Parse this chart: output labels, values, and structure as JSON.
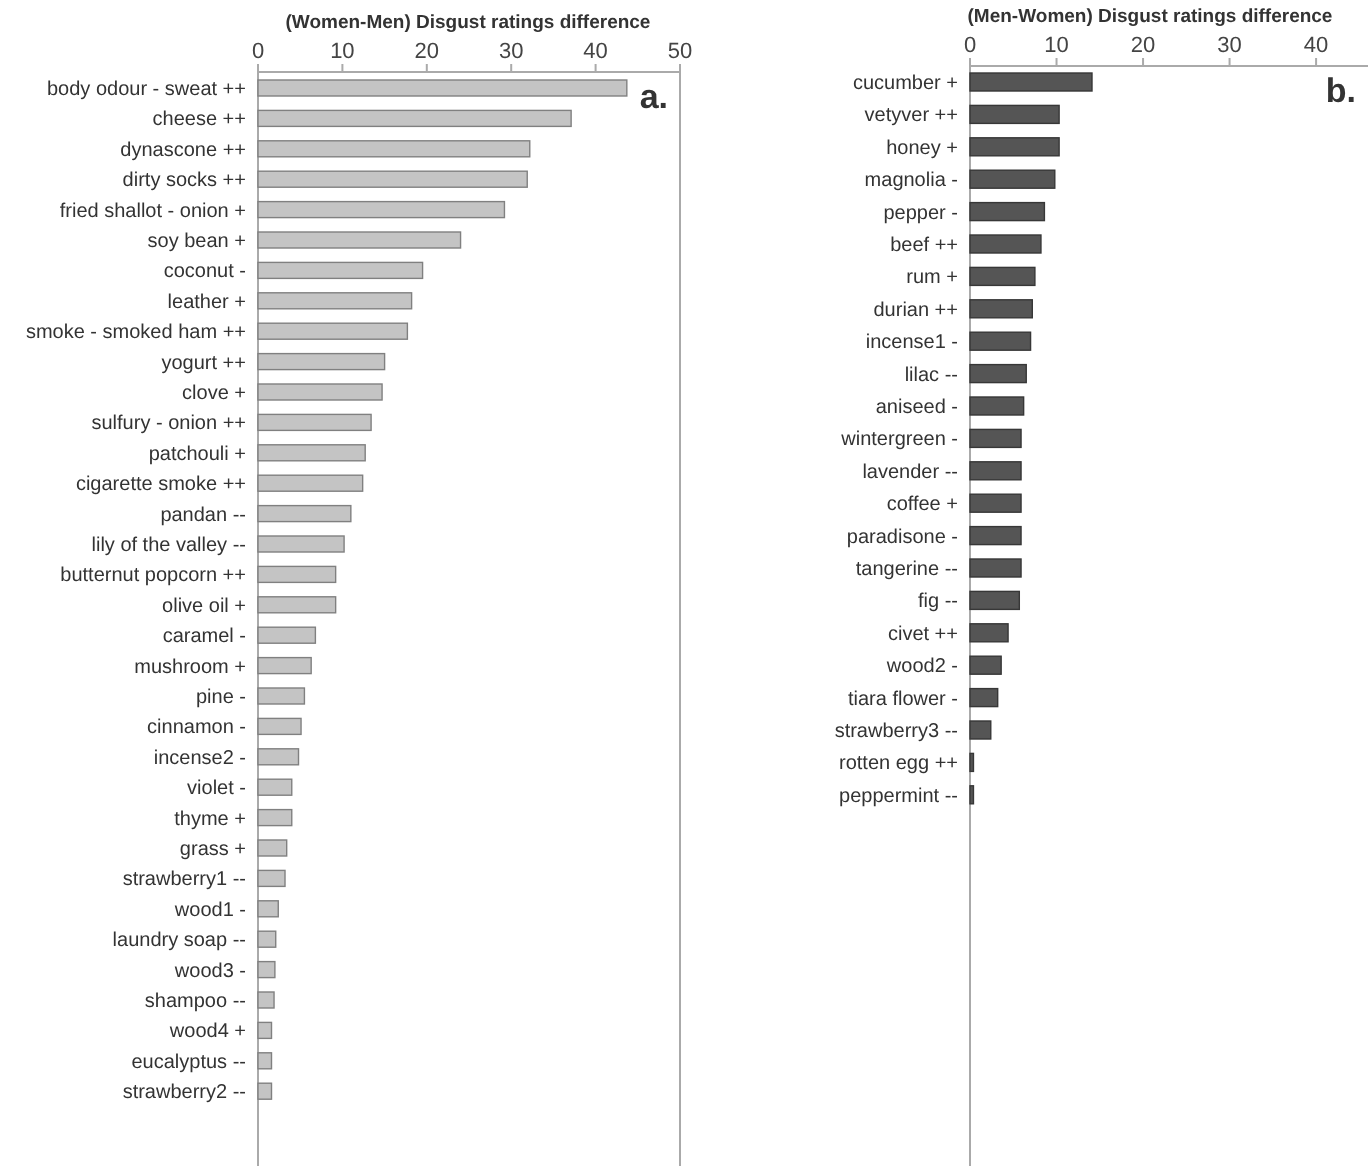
{
  "chart_data": [
    {
      "type": "bar",
      "orientation": "horizontal",
      "xlabel": "(Women-Men) Disgust ratings difference",
      "annotations": [
        "a."
      ],
      "categories": [
        "body odour - sweat ++",
        "cheese ++",
        "dynascone ++",
        "dirty socks ++",
        "fried shallot - onion +",
        "soy bean +",
        "coconut -",
        "leather +",
        "smoke - smoked ham ++",
        "yogurt ++",
        "clove +",
        "sulfury - onion ++",
        "patchouli +",
        "cigarette smoke ++",
        "pandan --",
        "lily of the valley --",
        "butternut popcorn ++",
        "olive oil +",
        "caramel -",
        "mushroom +",
        "pine -",
        "cinnamon -",
        "incense2 -",
        "violet -",
        "thyme +",
        "grass +",
        "strawberry1 --",
        "wood1 -",
        "laundry soap --",
        "wood3 -",
        "shampoo --",
        "wood4 +",
        "eucalyptus --",
        "strawberry2 --"
      ],
      "values": [
        43.7,
        37.1,
        32.2,
        31.9,
        29.2,
        24.0,
        19.5,
        18.2,
        17.7,
        15.0,
        14.7,
        13.4,
        12.7,
        12.4,
        11.0,
        10.2,
        9.2,
        9.2,
        6.8,
        6.3,
        5.5,
        5.1,
        4.8,
        4.0,
        4.0,
        3.4,
        3.2,
        2.4,
        2.1,
        2.0,
        1.9,
        1.6,
        1.6,
        1.6
      ],
      "color": "#c4c4c4",
      "xlim": [
        0,
        50
      ],
      "xticks": [
        0,
        10,
        20,
        30,
        40,
        50
      ]
    },
    {
      "type": "bar",
      "orientation": "horizontal",
      "xlabel": "(Men-Women) Disgust ratings difference",
      "annotations": [
        "b."
      ],
      "categories": [
        "cucumber +",
        "vetyver ++",
        "honey +",
        "magnolia -",
        "pepper -",
        "beef ++",
        "rum +",
        "durian ++",
        "incense1 -",
        "lilac --",
        "aniseed -",
        "wintergreen -",
        "lavender --",
        "coffee +",
        "paradisone -",
        "tangerine --",
        "fig --",
        "civet ++",
        "wood2 -",
        "tiara flower -",
        "strawberry3 --",
        "rotten egg ++",
        "peppermint --"
      ],
      "values": [
        14.1,
        10.3,
        10.3,
        9.8,
        8.6,
        8.2,
        7.5,
        7.2,
        7.0,
        6.5,
        6.2,
        5.9,
        5.9,
        5.9,
        5.9,
        5.9,
        5.7,
        4.4,
        3.6,
        3.2,
        2.4,
        0.4,
        0.4
      ],
      "color": "#555555",
      "xlim": [
        0,
        46
      ],
      "xticks": [
        0,
        10,
        20,
        30,
        40
      ]
    }
  ]
}
